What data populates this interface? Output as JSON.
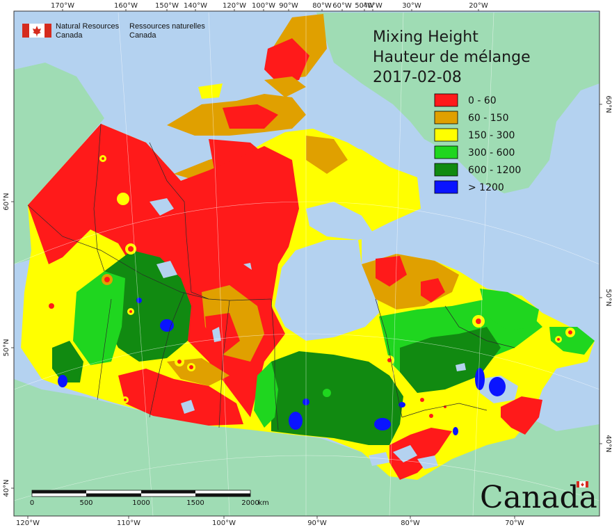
{
  "header": {
    "org_en_line1": "Natural Resources",
    "org_en_line2": "Canada",
    "org_fr_line1": "Ressources naturelles",
    "org_fr_line2": "Canada"
  },
  "title": {
    "line1": "Mixing Height",
    "line2": "Hauteur de mélange",
    "date": "2017-02-08"
  },
  "legend": [
    {
      "label": "0 - 60",
      "color": "#ff1a1a"
    },
    {
      "label": "60 - 150",
      "color": "#e0a000"
    },
    {
      "label": "150 - 300",
      "color": "#ffff00"
    },
    {
      "label": "300 - 600",
      "color": "#1fd61f"
    },
    {
      "label": "600 - 1200",
      "color": "#118a11"
    },
    {
      "label": "> 1200",
      "color": "#0a14ff"
    }
  ],
  "top_axis_labels": [
    "170°W",
    "160°W",
    "150°W",
    "140°W",
    "120°W",
    "100°W",
    "90°W",
    "80°W",
    "60°W",
    "50°W",
    "40°W",
    "30°W",
    "20°W"
  ],
  "bottom_axis_labels": [
    "120°W",
    "110°W",
    "100°W",
    "90°W",
    "80°W",
    "70°W"
  ],
  "left_axis_labels": [
    "60°N",
    "50°N",
    "40°N"
  ],
  "right_axis_labels": [
    "60°N",
    "50°N",
    "40°N"
  ],
  "scale_bar": {
    "ticks": [
      "0",
      "500",
      "1000",
      "1500",
      "2000"
    ],
    "unit": "km"
  },
  "wordmark": "Canada",
  "colors": {
    "ocean": "#b4d2f0",
    "land_outside": "#9fdcb4",
    "border": "#2a2a2a"
  }
}
